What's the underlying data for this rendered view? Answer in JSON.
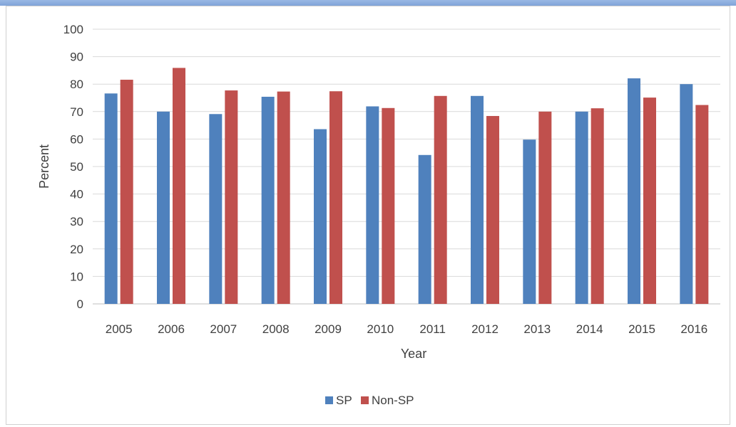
{
  "chart_data": {
    "type": "bar",
    "title": "",
    "xlabel": "Year",
    "ylabel": "Percent",
    "ylim": [
      0,
      100
    ],
    "yticks": [
      0,
      10,
      20,
      30,
      40,
      50,
      60,
      70,
      80,
      90,
      100
    ],
    "grid": true,
    "legend_position": "bottom",
    "categories": [
      "2005",
      "2006",
      "2007",
      "2008",
      "2009",
      "2010",
      "2011",
      "2012",
      "2013",
      "2014",
      "2015",
      "2016"
    ],
    "series": [
      {
        "name": "SP",
        "color": "#4f81bd",
        "values": [
          76.6,
          70.0,
          69.1,
          75.4,
          63.6,
          71.9,
          54.2,
          75.7,
          59.8,
          70.0,
          82.1,
          80.0
        ]
      },
      {
        "name": "Non-SP",
        "color": "#c0504d",
        "values": [
          81.6,
          85.9,
          77.7,
          77.3,
          77.4,
          71.3,
          75.7,
          68.4,
          70.0,
          71.2,
          75.1,
          72.4
        ]
      }
    ]
  }
}
